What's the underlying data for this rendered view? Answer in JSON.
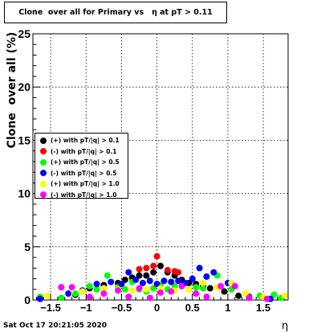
{
  "title": "Clone  over all for Primary vs   η at pT > 0.11",
  "timestamp": "Sat Oct 17 20:21:05 2020",
  "chart_data": {
    "type": "scatter",
    "title": "Clone  over all for Primary vs   η at pT > 0.11",
    "xlabel": "η",
    "ylabel": "Clone  over all (%)",
    "xlim": [
      -1.75,
      1.85
    ],
    "ylim": [
      0,
      25
    ],
    "xticks": [
      -1.5,
      -1,
      -0.5,
      0,
      0.5,
      1,
      1.5
    ],
    "xtick_labels": [
      "−1.5",
      "−1",
      "−0.5",
      "0",
      "0.5",
      "1",
      "1.5"
    ],
    "yticks": [
      0,
      5,
      10,
      15,
      20,
      25
    ],
    "ytick_labels": [
      "0",
      "5",
      "10",
      "15",
      "20",
      "25"
    ],
    "grid": true,
    "legend_position": "left-middle",
    "series": [
      {
        "name": "(+) with pT/|q| > 0.1",
        "color": "#000000",
        "x": [
          -1.15,
          -0.95,
          -0.75,
          -0.55,
          -0.45,
          -0.35,
          -0.25,
          -0.15,
          -0.05,
          0.05,
          0.15,
          0.25,
          0.35,
          0.45,
          0.55,
          0.65,
          0.75,
          0.95,
          1.15
        ],
        "y": [
          0.5,
          1.1,
          1.4,
          1.6,
          1.9,
          2.1,
          2.3,
          2.3,
          2.6,
          3.2,
          2.6,
          2.3,
          1.9,
          1.6,
          1.5,
          1.3,
          1.1,
          0.8,
          0.4
        ]
      },
      {
        "name": "(-) with pT/|q| > 0.1",
        "color": "#ff0000",
        "x": [
          -0.25,
          -0.15,
          -0.05,
          0.0,
          0.15,
          0.25,
          0.3
        ],
        "y": [
          2.9,
          3.0,
          3.2,
          4.1,
          2.8,
          2.7,
          2.6
        ]
      },
      {
        "name": "(+) with pT/|q| > 0.5",
        "color": "#00ff00",
        "x": [
          -1.65,
          -1.35,
          -1.15,
          -0.95,
          -0.85,
          -0.7,
          -0.55,
          -0.45,
          -0.35,
          -0.25,
          -0.15,
          -0.05,
          0.05,
          0.15,
          0.25,
          0.35,
          0.45,
          0.55,
          0.65,
          0.85,
          1.05,
          1.25,
          1.45,
          1.65,
          1.75
        ],
        "y": [
          0.3,
          0.2,
          0.6,
          1.3,
          1.0,
          2.3,
          1.2,
          1.0,
          1.7,
          1.0,
          0.8,
          1.1,
          1.4,
          1.0,
          1.3,
          1.3,
          1.0,
          1.2,
          1.1,
          2.3,
          1.0,
          0.6,
          0.4,
          0.5,
          0.2
        ]
      },
      {
        "name": "(-) with pT/|q| > 0.5",
        "color": "#0000ff",
        "x": [
          -1.65,
          -1.25,
          -1.05,
          -0.85,
          -0.65,
          -0.5,
          -0.4,
          -0.3,
          -0.2,
          -0.1,
          0.0,
          0.1,
          0.2,
          0.3,
          0.4,
          0.5,
          0.6,
          0.7,
          0.8,
          1.0,
          1.3,
          1.6
        ],
        "y": [
          0.1,
          0.6,
          0.9,
          1.5,
          1.7,
          1.5,
          2.6,
          1.9,
          1.6,
          1.8,
          1.5,
          1.8,
          1.7,
          1.8,
          1.6,
          2.0,
          3.0,
          2.2,
          2.6,
          1.6,
          0.3,
          0.1
        ]
      },
      {
        "name": "(+) with pT/|q| > 1.0",
        "color": "#ffff00",
        "x": [
          -1.55,
          -1.05,
          -0.75,
          -0.55,
          -0.35,
          -0.15,
          0.05,
          0.25,
          0.45,
          0.65,
          0.85,
          1.05,
          1.25,
          1.5,
          1.8
        ],
        "y": [
          0.4,
          0.8,
          1.1,
          1.0,
          0.9,
          1.0,
          1.1,
          0.9,
          1.0,
          1.6,
          1.2,
          1.6,
          0.6,
          0.3,
          0.4
        ]
      },
      {
        "name": "(-) with pT/|q| > 1.0",
        "color": "#ff00ff",
        "x": [
          -1.35,
          -1.2,
          -0.95,
          -0.75,
          -0.55,
          -0.4,
          -0.25,
          -0.1,
          0.05,
          0.2,
          0.35,
          0.55,
          0.7,
          0.9,
          1.1,
          1.3,
          1.55
        ],
        "y": [
          1.2,
          1.2,
          0.3,
          0.6,
          0.9,
          0.3,
          1.1,
          0.2,
          0.7,
          0.8,
          1.3,
          0.6,
          0.3,
          1.3,
          1.3,
          0.2,
          0.1
        ]
      }
    ]
  }
}
